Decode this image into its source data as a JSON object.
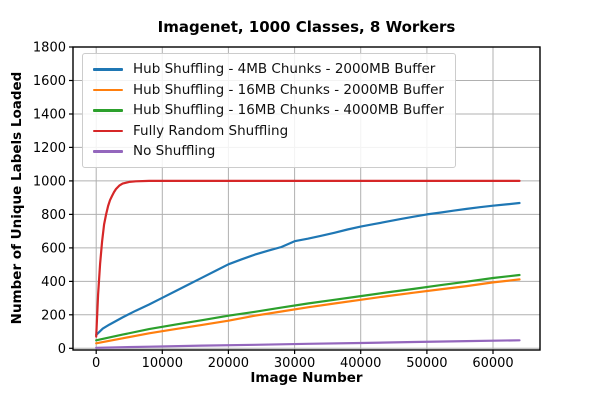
{
  "chart_data": {
    "type": "line",
    "title": "Imagenet, 1000 Classes, 8 Workers",
    "xlabel": "Image Number",
    "ylabel": "Number of Unique Labels Loaded",
    "xlim": [
      -3500,
      67100
    ],
    "ylim": [
      -10,
      1800
    ],
    "xticks": [
      0,
      10000,
      20000,
      30000,
      40000,
      50000,
      60000
    ],
    "yticks": [
      0,
      200,
      400,
      600,
      800,
      1000,
      1200,
      1400,
      1600,
      1800
    ],
    "grid": true,
    "grid_color": "#b0b0b0",
    "spine_color": "#000000",
    "tick_label_color": "#000000",
    "legend_position": "upper left",
    "series": [
      {
        "name": "Hub Shuffling - 4MB Chunks - 2000MB Buffer",
        "color": "#1f77b4",
        "x": [
          0,
          1000,
          2000,
          4000,
          6000,
          8000,
          10000,
          12000,
          14000,
          16000,
          18000,
          20000,
          22000,
          24000,
          26000,
          28000,
          30000,
          32000,
          34000,
          36000,
          38000,
          40000,
          42000,
          44000,
          46000,
          48000,
          50000,
          52000,
          54000,
          56000,
          58000,
          60000,
          62000,
          64000
        ],
        "y": [
          80,
          118,
          142,
          185,
          225,
          262,
          302,
          342,
          382,
          422,
          462,
          502,
          532,
          560,
          583,
          605,
          640,
          655,
          672,
          690,
          710,
          727,
          742,
          757,
          772,
          786,
          800,
          811,
          822,
          833,
          843,
          852,
          860,
          868
        ]
      },
      {
        "name": "Hub Shuffling - 16MB Chunks - 2000MB Buffer",
        "color": "#ff7f0e",
        "x": [
          0,
          4000,
          8000,
          12000,
          16000,
          20000,
          24000,
          28000,
          32000,
          36000,
          40000,
          44000,
          48000,
          52000,
          56000,
          60000,
          64000
        ],
        "y": [
          30,
          60,
          90,
          115,
          140,
          165,
          195,
          220,
          245,
          268,
          290,
          312,
          332,
          352,
          372,
          394,
          412
        ]
      },
      {
        "name": "Hub Shuffling - 16MB Chunks - 4000MB Buffer",
        "color": "#2ca02c",
        "x": [
          0,
          4000,
          8000,
          12000,
          16000,
          20000,
          24000,
          28000,
          32000,
          36000,
          40000,
          44000,
          48000,
          52000,
          56000,
          60000,
          64000
        ],
        "y": [
          48,
          82,
          115,
          142,
          168,
          195,
          218,
          243,
          268,
          290,
          312,
          334,
          355,
          377,
          398,
          420,
          438
        ]
      },
      {
        "name": "Fully Random Shuffling",
        "color": "#d62728",
        "x": [
          0,
          300,
          600,
          900,
          1200,
          1500,
          1800,
          2100,
          2400,
          2700,
          3000,
          3500,
          4000,
          5000,
          6000,
          8000,
          12000,
          16000,
          20000,
          28000,
          36000,
          44000,
          52000,
          60000,
          64000
        ],
        "y": [
          70,
          322,
          505,
          639,
          740,
          800,
          850,
          885,
          910,
          933,
          952,
          972,
          984,
          994,
          998,
          1000,
          1000,
          1000,
          1000,
          1000,
          1000,
          1000,
          1000,
          1000,
          1000
        ]
      },
      {
        "name": "No Shuffling",
        "color": "#9467bd",
        "x": [
          0,
          8000,
          16000,
          24000,
          32000,
          40000,
          48000,
          56000,
          64000
        ],
        "y": [
          3,
          10,
          16,
          21,
          27,
          32,
          38,
          43,
          48
        ]
      }
    ]
  }
}
